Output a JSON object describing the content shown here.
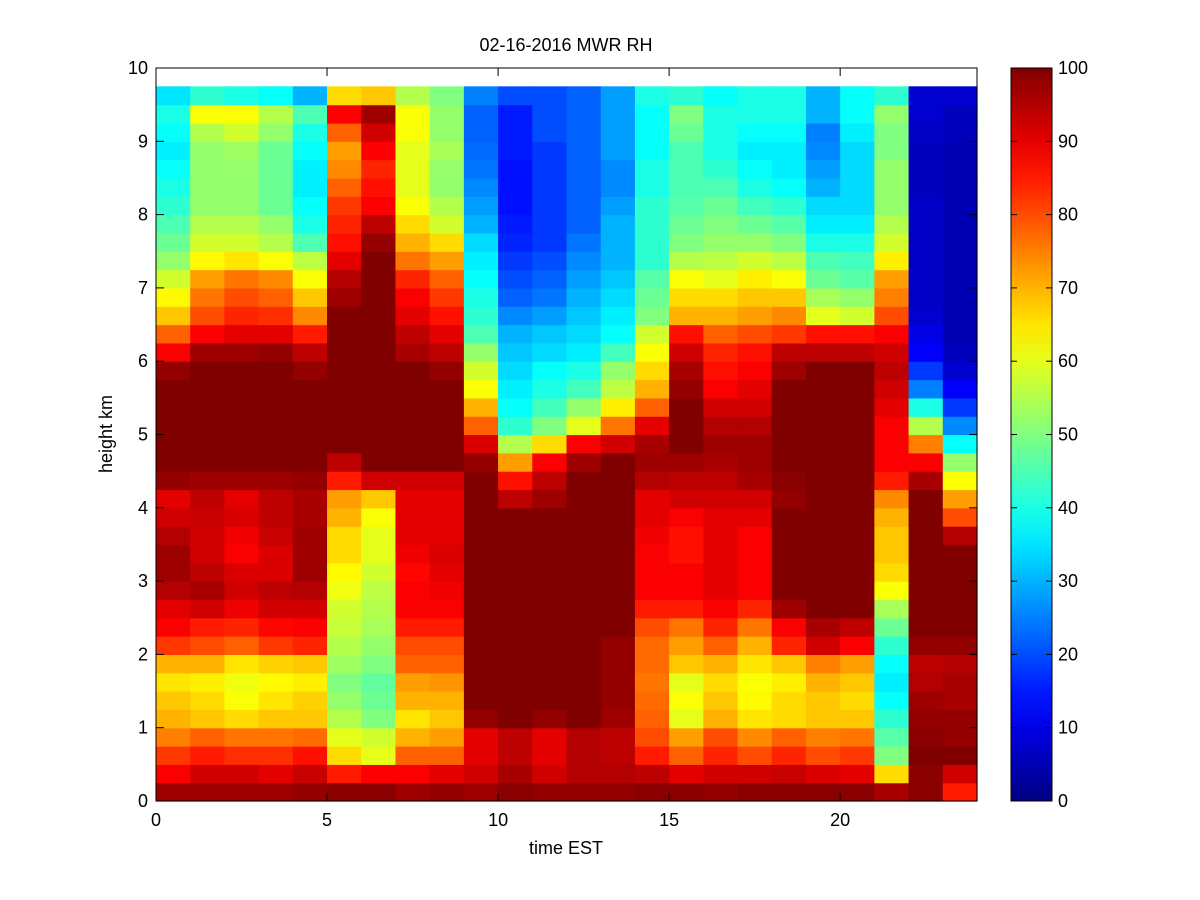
{
  "chart_data": {
    "type": "heatmap",
    "title": "02-16-2016 MWR RH",
    "xlabel": "time EST",
    "ylabel": "height km",
    "xlim": [
      0,
      24
    ],
    "ylim": [
      0,
      10
    ],
    "xticks": [
      0,
      5,
      10,
      15,
      20
    ],
    "yticks": [
      0,
      1,
      2,
      3,
      4,
      5,
      6,
      7,
      8,
      9,
      10
    ],
    "colorbar": {
      "label": "",
      "range": [
        0,
        100
      ],
      "ticks": [
        0,
        10,
        20,
        30,
        40,
        50,
        60,
        70,
        80,
        90,
        100
      ],
      "colormap": "jet"
    },
    "x_times": [
      0,
      1,
      2,
      3,
      4,
      5,
      6,
      7,
      8,
      9,
      10,
      11,
      12,
      13,
      14,
      15,
      16,
      17,
      18,
      19,
      20,
      21,
      22,
      23
    ],
    "heights_km": [
      0,
      0.25,
      0.5,
      0.75,
      1,
      1.25,
      1.5,
      1.75,
      2,
      2.25,
      2.5,
      2.75,
      3,
      3.25,
      3.5,
      3.75,
      4,
      4.25,
      4.5,
      4.75,
      5,
      5.25,
      5.5,
      5.75,
      6,
      6.25,
      6.5,
      6.75,
      7,
      7.25,
      7.5,
      7.75,
      8,
      8.25,
      8.5,
      8.75,
      9,
      9.25,
      9.5
    ],
    "height_top_km": 9.75,
    "rh_profiles": [
      [
        97,
        88,
        82,
        75,
        70,
        68,
        65,
        70,
        82,
        88,
        90,
        95,
        97,
        97,
        95,
        92,
        90,
        98,
        100,
        100,
        100,
        100,
        100,
        98,
        88,
        78,
        68,
        63,
        58,
        52,
        48,
        45,
        42,
        40,
        38,
        36,
        38,
        40,
        35
      ],
      [
        97,
        92,
        85,
        78,
        68,
        66,
        64,
        70,
        80,
        85,
        92,
        96,
        94,
        92,
        92,
        93,
        94,
        97,
        100,
        100,
        100,
        100,
        100,
        100,
        97,
        88,
        80,
        76,
        72,
        63,
        58,
        55,
        52,
        52,
        52,
        52,
        55,
        62,
        42
      ],
      [
        97,
        92,
        83,
        76,
        66,
        62,
        61,
        65,
        78,
        84,
        89,
        92,
        91,
        88,
        89,
        91,
        90,
        97,
        100,
        100,
        100,
        100,
        100,
        100,
        97,
        90,
        84,
        80,
        76,
        65,
        58,
        55,
        52,
        52,
        52,
        53,
        58,
        62,
        40
      ],
      [
        97,
        90,
        83,
        76,
        68,
        65,
        63,
        67,
        82,
        87,
        92,
        94,
        91,
        91,
        93,
        94,
        94,
        97,
        100,
        100,
        100,
        100,
        100,
        100,
        98,
        90,
        83,
        78,
        74,
        62,
        55,
        52,
        48,
        48,
        48,
        48,
        52,
        55,
        38
      ],
      [
        98,
        93,
        86,
        77,
        68,
        67,
        64,
        68,
        84,
        88,
        92,
        95,
        97,
        97,
        97,
        96,
        96,
        98,
        100,
        100,
        100,
        100,
        100,
        98,
        94,
        85,
        74,
        68,
        62,
        56,
        45,
        40,
        38,
        36,
        36,
        38,
        40,
        45,
        30
      ],
      [
        99,
        85,
        66,
        60,
        55,
        52,
        50,
        53,
        55,
        57,
        58,
        61,
        63,
        66,
        66,
        70,
        72,
        85,
        94,
        100,
        100,
        100,
        100,
        100,
        100,
        100,
        100,
        97,
        95,
        90,
        86,
        84,
        82,
        78,
        74,
        72,
        78,
        88,
        66
      ],
      [
        99,
        88,
        60,
        58,
        50,
        48,
        47,
        50,
        52,
        54,
        55,
        56,
        58,
        60,
        60,
        62,
        68,
        92,
        100,
        100,
        100,
        100,
        100,
        100,
        100,
        100,
        100,
        100,
        100,
        100,
        98,
        94,
        88,
        86,
        84,
        88,
        92,
        97,
        68
      ],
      [
        97,
        88,
        78,
        70,
        65,
        70,
        72,
        78,
        80,
        85,
        88,
        88,
        87,
        89,
        90,
        90,
        90,
        92,
        100,
        100,
        100,
        100,
        100,
        100,
        96,
        94,
        90,
        88,
        84,
        76,
        70,
        66,
        62,
        60,
        60,
        60,
        62,
        62,
        55
      ],
      [
        98,
        90,
        78,
        72,
        68,
        70,
        73,
        78,
        80,
        85,
        88,
        89,
        90,
        91,
        90,
        90,
        90,
        92,
        100,
        100,
        100,
        100,
        100,
        98,
        94,
        90,
        86,
        82,
        78,
        72,
        66,
        58,
        55,
        52,
        52,
        54,
        52,
        52,
        50
      ],
      [
        97,
        92,
        90,
        90,
        98,
        100,
        100,
        100,
        100,
        100,
        100,
        100,
        100,
        100,
        100,
        100,
        100,
        100,
        98,
        91,
        78,
        70,
        62,
        58,
        52,
        45,
        42,
        40,
        38,
        36,
        34,
        30,
        28,
        26,
        24,
        23,
        22,
        22,
        25
      ],
      [
        99,
        96,
        94,
        94,
        100,
        100,
        100,
        100,
        100,
        100,
        100,
        100,
        100,
        100,
        100,
        100,
        94,
        86,
        72,
        55,
        42,
        38,
        36,
        34,
        32,
        30,
        26,
        22,
        20,
        18,
        16,
        15,
        14,
        14,
        14,
        15,
        15,
        15,
        20
      ],
      [
        98,
        92,
        90,
        90,
        98,
        100,
        100,
        100,
        100,
        100,
        100,
        100,
        100,
        100,
        100,
        100,
        97,
        94,
        88,
        66,
        50,
        44,
        40,
        38,
        34,
        32,
        28,
        24,
        22,
        20,
        18,
        18,
        18,
        18,
        18,
        18,
        20,
        20,
        20
      ],
      [
        98,
        95,
        95,
        95,
        100,
        100,
        100,
        100,
        100,
        100,
        100,
        100,
        100,
        100,
        100,
        100,
        100,
        100,
        97,
        88,
        60,
        52,
        44,
        40,
        36,
        34,
        32,
        30,
        28,
        26,
        24,
        22,
        22,
        22,
        22,
        22,
        22,
        22,
        22
      ],
      [
        98,
        95,
        94,
        94,
        97,
        98,
        98,
        98,
        98,
        100,
        100,
        100,
        100,
        100,
        100,
        100,
        100,
        100,
        100,
        92,
        76,
        64,
        56,
        52,
        44,
        38,
        36,
        34,
        32,
        30,
        30,
        30,
        28,
        26,
        26,
        28,
        28,
        28,
        28
      ],
      [
        99,
        94,
        85,
        80,
        78,
        77,
        76,
        77,
        77,
        80,
        85,
        88,
        88,
        88,
        89,
        90,
        90,
        95,
        97,
        96,
        90,
        78,
        70,
        66,
        62,
        58,
        50,
        48,
        46,
        42,
        42,
        42,
        42,
        40,
        40,
        38,
        38,
        38,
        40
      ],
      [
        99,
        90,
        78,
        72,
        60,
        62,
        60,
        68,
        72,
        76,
        85,
        88,
        88,
        86,
        86,
        88,
        92,
        94,
        97,
        100,
        100,
        100,
        98,
        96,
        92,
        86,
        70,
        66,
        62,
        55,
        50,
        48,
        46,
        45,
        45,
        45,
        48,
        50,
        42
      ],
      [
        98,
        92,
        84,
        80,
        70,
        68,
        66,
        70,
        78,
        84,
        88,
        90,
        90,
        90,
        90,
        90,
        92,
        94,
        96,
        97,
        95,
        92,
        88,
        86,
        84,
        78,
        70,
        66,
        60,
        56,
        52,
        50,
        48,
        45,
        42,
        40,
        40,
        40,
        38
      ],
      [
        99,
        92,
        80,
        74,
        65,
        63,
        62,
        65,
        70,
        76,
        84,
        88,
        88,
        88,
        88,
        90,
        92,
        96,
        97,
        97,
        95,
        92,
        90,
        88,
        86,
        80,
        72,
        68,
        64,
        58,
        52,
        48,
        44,
        40,
        38,
        36,
        38,
        40,
        40
      ],
      [
        99,
        93,
        84,
        78,
        66,
        66,
        64,
        68,
        84,
        88,
        97,
        100,
        100,
        100,
        100,
        100,
        98,
        99,
        100,
        100,
        100,
        100,
        100,
        97,
        94,
        82,
        74,
        68,
        62,
        56,
        50,
        46,
        42,
        38,
        36,
        36,
        38,
        40,
        40
      ],
      [
        99,
        91,
        80,
        75,
        68,
        68,
        70,
        75,
        92,
        96,
        100,
        100,
        100,
        100,
        100,
        100,
        100,
        100,
        100,
        100,
        100,
        100,
        100,
        100,
        94,
        86,
        60,
        54,
        48,
        45,
        40,
        36,
        34,
        30,
        28,
        26,
        25,
        30,
        30
      ],
      [
        99,
        90,
        82,
        76,
        68,
        66,
        68,
        72,
        88,
        94,
        100,
        100,
        100,
        100,
        100,
        100,
        100,
        100,
        100,
        100,
        100,
        100,
        100,
        100,
        94,
        86,
        58,
        52,
        46,
        44,
        40,
        36,
        34,
        34,
        34,
        34,
        36,
        38,
        38
      ],
      [
        96,
        66,
        50,
        46,
        42,
        38,
        36,
        38,
        42,
        48,
        54,
        62,
        66,
        68,
        68,
        70,
        74,
        85,
        88,
        88,
        88,
        90,
        92,
        94,
        92,
        88,
        80,
        75,
        72,
        64,
        58,
        55,
        52,
        52,
        52,
        50,
        50,
        52,
        42
      ],
      [
        99,
        99,
        100,
        99,
        98,
        97,
        95,
        94,
        98,
        100,
        100,
        100,
        100,
        100,
        100,
        100,
        100,
        96,
        88,
        75,
        55,
        40,
        25,
        18,
        12,
        10,
        8,
        7,
        7,
        7,
        7,
        7,
        7,
        6,
        6,
        6,
        7,
        8,
        8
      ],
      [
        85,
        92,
        100,
        98,
        98,
        96,
        96,
        95,
        98,
        100,
        100,
        100,
        100,
        100,
        95,
        80,
        72,
        62,
        52,
        38,
        26,
        18,
        12,
        8,
        6,
        5,
        5,
        5,
        5,
        5,
        5,
        5,
        5,
        5,
        5,
        5,
        6,
        6,
        8
      ]
    ]
  }
}
